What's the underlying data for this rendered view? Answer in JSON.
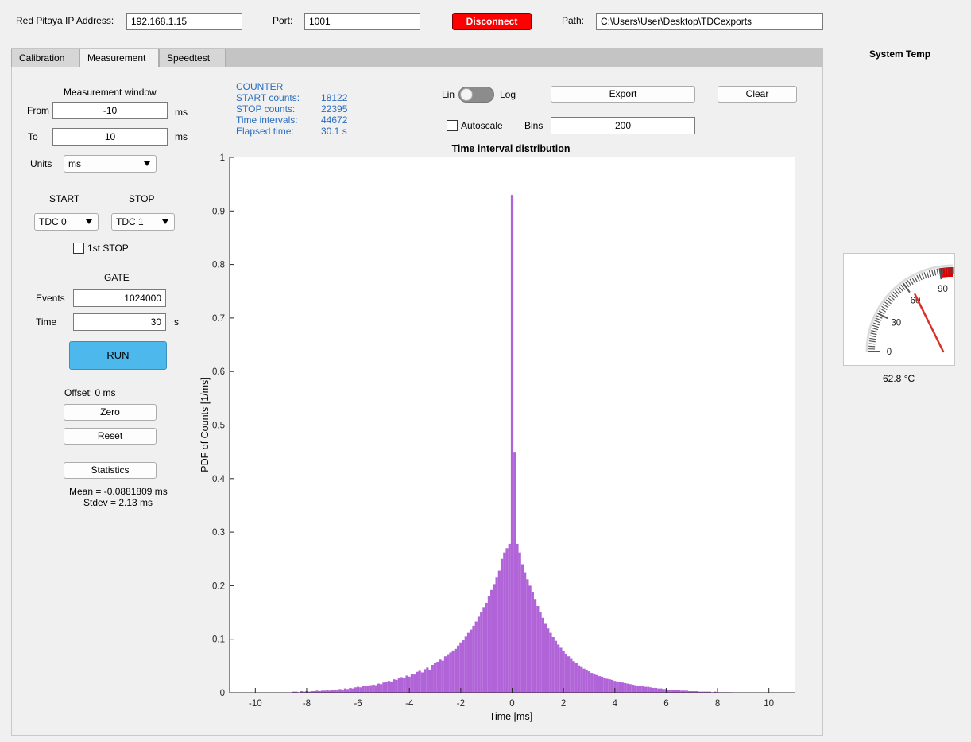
{
  "topbar": {
    "ip_label": "Red Pitaya IP Address:",
    "ip_value": "192.168.1.15",
    "port_label": "Port:",
    "port_value": "1001",
    "disconnect_label": "Disconnect",
    "path_label": "Path:",
    "path_value": "C:\\Users\\User\\Desktop\\TDCexports"
  },
  "tabs": [
    {
      "label": "Calibration"
    },
    {
      "label": "Measurement"
    },
    {
      "label": "Speedtest"
    }
  ],
  "measurement": {
    "window_title": "Measurement window",
    "from_label": "From",
    "from_value": "-10",
    "from_unit": "ms",
    "to_label": "To",
    "to_value": "10",
    "to_unit": "ms",
    "units_label": "Units",
    "units_value": "ms",
    "start_label": "START",
    "stop_label": "STOP",
    "start_value": "TDC 0",
    "stop_value": "TDC 1",
    "first_stop_label": "1st STOP",
    "gate_label": "GATE",
    "events_label": "Events",
    "events_value": "1024000",
    "time_label": "Time",
    "time_value": "30",
    "time_unit": "s",
    "run_label": "RUN",
    "offset_text": "Offset: 0 ms",
    "zero_label": "Zero",
    "reset_label": "Reset",
    "statistics_label": "Statistics",
    "mean_text": "Mean = -0.0881809 ms",
    "stdev_text": "Stdev = 2.13 ms"
  },
  "counter": {
    "title": "COUNTER",
    "rows": [
      {
        "label": "START counts:",
        "value": "18122"
      },
      {
        "label": "STOP counts:",
        "value": "22395"
      },
      {
        "label": "Time intervals:",
        "value": "44672"
      },
      {
        "label": "Elapsed time:",
        "value": "30.1 s"
      }
    ]
  },
  "controls": {
    "lin_label": "Lin",
    "log_label": "Log",
    "export_label": "Export",
    "clear_label": "Clear",
    "autoscale_label": "Autoscale",
    "bins_label": "Bins",
    "bins_value": "200"
  },
  "gauge": {
    "title": "System Temp",
    "value": 62.8,
    "reading_text": "62.8 °C",
    "min": 0,
    "max": 100,
    "tick_labels": [
      "0",
      "30",
      "60",
      "90"
    ],
    "needle_color": "#d9302a",
    "alarm_color": "#e00000"
  },
  "colors": {
    "accent_run": "#4cb8ec",
    "disconnect": "#ff0000",
    "bars": "#b163d8",
    "counter_text": "#2a6dbf"
  },
  "chart_data": {
    "type": "bar",
    "title": "Time interval distribution",
    "xlabel": "Time [ms]",
    "ylabel": "PDF of Counts [1/ms]",
    "xlim": [
      -11,
      11
    ],
    "ylim": [
      0,
      1
    ],
    "xticks": [
      -10,
      -8,
      -6,
      -4,
      -2,
      0,
      2,
      4,
      6,
      8,
      10
    ],
    "yticks": [
      0,
      0.1,
      0.2,
      0.3,
      0.4,
      0.5,
      0.6,
      0.7,
      0.8,
      0.9,
      1
    ],
    "bin_width": 0.1,
    "series": [
      {
        "x": [
          -8.5,
          -8.4,
          -8.3,
          -8.2,
          -8.1,
          -8.0,
          -7.9,
          -7.8,
          -7.7,
          -7.6,
          -7.5,
          -7.4,
          -7.3,
          -7.2,
          -7.1,
          -7.0,
          -6.9,
          -6.8,
          -6.7,
          -6.6,
          -6.5,
          -6.4,
          -6.3,
          -6.2,
          -6.1,
          -6.0,
          -5.9,
          -5.8,
          -5.7,
          -5.6,
          -5.5,
          -5.4,
          -5.3,
          -5.2,
          -5.1,
          -5.0,
          -4.9,
          -4.8,
          -4.7,
          -4.6,
          -4.5,
          -4.4,
          -4.3,
          -4.2,
          -4.1,
          -4.0,
          -3.9,
          -3.8,
          -3.7,
          -3.6,
          -3.5,
          -3.4,
          -3.3,
          -3.2,
          -3.1,
          -3.0,
          -2.9,
          -2.8,
          -2.7,
          -2.6,
          -2.5,
          -2.4,
          -2.3,
          -2.2,
          -2.1,
          -2.0,
          -1.9,
          -1.8,
          -1.7,
          -1.6,
          -1.5,
          -1.4,
          -1.3,
          -1.2,
          -1.1,
          -1.0,
          -0.9,
          -0.8,
          -0.7,
          -0.6,
          -0.5,
          -0.4,
          -0.3,
          -0.2,
          -0.1,
          0.0,
          0.1,
          0.2,
          0.3,
          0.4,
          0.5,
          0.6,
          0.7,
          0.8,
          0.9,
          1.0,
          1.1,
          1.2,
          1.3,
          1.4,
          1.5,
          1.6,
          1.7,
          1.8,
          1.9,
          2.0,
          2.1,
          2.2,
          2.3,
          2.4,
          2.5,
          2.6,
          2.7,
          2.8,
          2.9,
          3.0,
          3.1,
          3.2,
          3.3,
          3.4,
          3.5,
          3.6,
          3.7,
          3.8,
          3.9,
          4.0,
          4.1,
          4.2,
          4.3,
          4.4,
          4.5,
          4.6,
          4.7,
          4.8,
          4.9,
          5.0,
          5.1,
          5.2,
          5.3,
          5.4,
          5.5,
          5.6,
          5.7,
          5.8,
          5.9,
          6.0,
          6.1,
          6.2,
          6.3,
          6.4,
          6.5,
          6.6,
          6.7,
          6.8,
          6.9,
          7.0,
          7.1,
          7.2,
          7.3,
          7.4,
          7.5,
          7.6,
          7.7,
          7.8,
          7.9,
          8.0,
          8.1,
          8.2,
          8.3,
          8.4,
          8.5
        ],
        "values": [
          0.002,
          0.002,
          0.001,
          0.003,
          0.002,
          0.003,
          0.002,
          0.003,
          0.003,
          0.004,
          0.003,
          0.004,
          0.004,
          0.005,
          0.004,
          0.005,
          0.006,
          0.005,
          0.007,
          0.006,
          0.008,
          0.007,
          0.009,
          0.008,
          0.01,
          0.011,
          0.01,
          0.012,
          0.013,
          0.012,
          0.014,
          0.015,
          0.014,
          0.017,
          0.016,
          0.019,
          0.02,
          0.022,
          0.021,
          0.025,
          0.024,
          0.027,
          0.029,
          0.028,
          0.032,
          0.03,
          0.035,
          0.034,
          0.039,
          0.041,
          0.038,
          0.044,
          0.047,
          0.043,
          0.052,
          0.055,
          0.058,
          0.062,
          0.06,
          0.068,
          0.072,
          0.075,
          0.079,
          0.082,
          0.088,
          0.094,
          0.098,
          0.105,
          0.112,
          0.118,
          0.125,
          0.133,
          0.142,
          0.15,
          0.16,
          0.168,
          0.18,
          0.192,
          0.203,
          0.215,
          0.228,
          0.25,
          0.262,
          0.27,
          0.278,
          0.93,
          0.45,
          0.278,
          0.262,
          0.24,
          0.225,
          0.212,
          0.2,
          0.188,
          0.175,
          0.162,
          0.15,
          0.14,
          0.13,
          0.12,
          0.112,
          0.104,
          0.097,
          0.09,
          0.084,
          0.078,
          0.073,
          0.068,
          0.063,
          0.059,
          0.055,
          0.051,
          0.048,
          0.045,
          0.042,
          0.04,
          0.037,
          0.035,
          0.033,
          0.031,
          0.03,
          0.028,
          0.026,
          0.025,
          0.024,
          0.022,
          0.021,
          0.02,
          0.019,
          0.018,
          0.017,
          0.016,
          0.015,
          0.014,
          0.013,
          0.013,
          0.012,
          0.011,
          0.011,
          0.01,
          0.009,
          0.009,
          0.008,
          0.008,
          0.007,
          0.007,
          0.006,
          0.006,
          0.005,
          0.005,
          0.005,
          0.004,
          0.004,
          0.004,
          0.003,
          0.003,
          0.003,
          0.003,
          0.002,
          0.002,
          0.002,
          0.002,
          0.002,
          0.001,
          0.002,
          0.001,
          0.001,
          0.001,
          0.001,
          0.001,
          0.001
        ]
      }
    ]
  }
}
